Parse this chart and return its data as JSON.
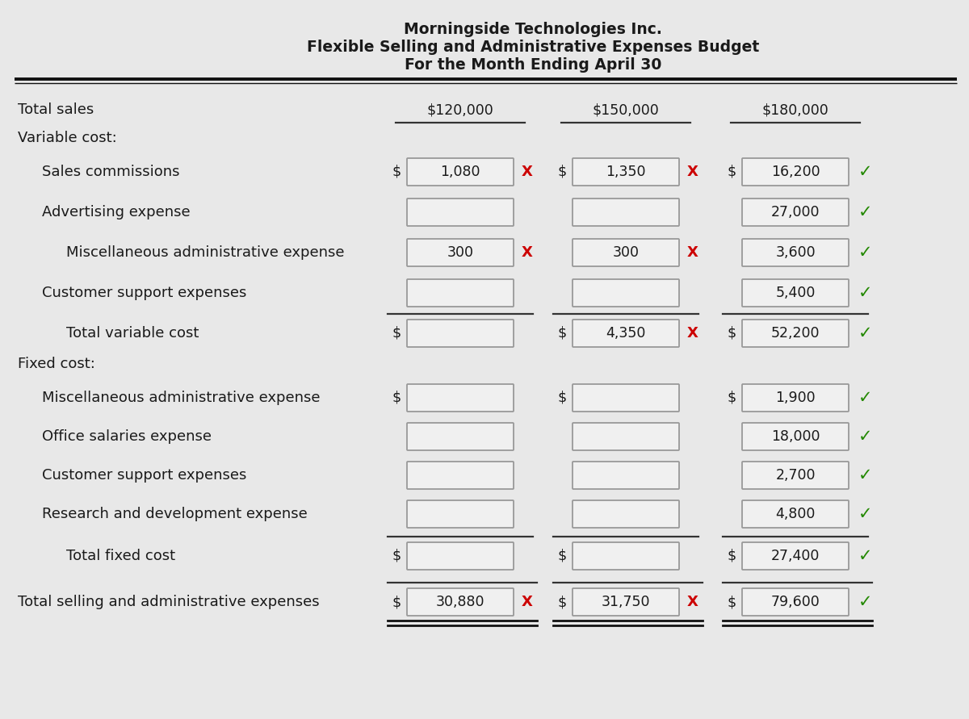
{
  "title_line1": "Morningside Technologies Inc.",
  "title_line2": "Flexible Selling and Administrative Expenses Budget",
  "title_line3": "For the Month Ending April 30",
  "bg_color": "#e8e8e8",
  "box_fill": "#f0f0f0",
  "box_edge": "#999999",
  "text_color": "#1a1a1a",
  "x_color": "#cc0000",
  "check_color": "#228800",
  "rows": [
    {
      "label": "Total sales",
      "indent": 0,
      "col1": {
        "type": "header_value",
        "value": "$120,000"
      },
      "col2": {
        "type": "header_value",
        "value": "$150,000"
      },
      "col3": {
        "type": "header_value",
        "value": "$180,000"
      }
    },
    {
      "label": "Variable cost:",
      "indent": 0,
      "is_section": true
    },
    {
      "label": "Sales commissions",
      "indent": 1,
      "col1": {
        "type": "dollar_box_x",
        "value": "1,080"
      },
      "col2": {
        "type": "dollar_box_x",
        "value": "1,350"
      },
      "col3": {
        "type": "dollar_box_check",
        "value": "16,200"
      }
    },
    {
      "label": "Advertising expense",
      "indent": 1,
      "col1": {
        "type": "box_empty"
      },
      "col2": {
        "type": "box_empty"
      },
      "col3": {
        "type": "box_check",
        "value": "27,000"
      }
    },
    {
      "label": "Miscellaneous administrative expense",
      "indent": 2,
      "col1": {
        "type": "box_x",
        "value": "300"
      },
      "col2": {
        "type": "box_x",
        "value": "300"
      },
      "col3": {
        "type": "box_check",
        "value": "3,600"
      }
    },
    {
      "label": "Customer support expenses",
      "indent": 1,
      "col1": {
        "type": "box_empty"
      },
      "col2": {
        "type": "box_empty"
      },
      "col3": {
        "type": "box_check",
        "value": "5,400"
      }
    },
    {
      "label": "Total variable cost",
      "indent": 2,
      "is_total": true,
      "col1": {
        "type": "dollar_box_empty"
      },
      "col2": {
        "type": "dollar_box_x",
        "value": "4,350"
      },
      "col3": {
        "type": "dollar_box_check",
        "value": "52,200"
      }
    },
    {
      "label": "Fixed cost:",
      "indent": 0,
      "is_section": true
    },
    {
      "label": "Miscellaneous administrative expense",
      "indent": 1,
      "col1": {
        "type": "dollar_box_empty"
      },
      "col2": {
        "type": "dollar_box_empty"
      },
      "col3": {
        "type": "dollar_box_check",
        "value": "1,900"
      }
    },
    {
      "label": "Office salaries expense",
      "indent": 1,
      "col1": {
        "type": "box_empty"
      },
      "col2": {
        "type": "box_empty"
      },
      "col3": {
        "type": "box_check",
        "value": "18,000"
      }
    },
    {
      "label": "Customer support expenses",
      "indent": 1,
      "col1": {
        "type": "box_empty"
      },
      "col2": {
        "type": "box_empty"
      },
      "col3": {
        "type": "box_check",
        "value": "2,700"
      }
    },
    {
      "label": "Research and development expense",
      "indent": 1,
      "col1": {
        "type": "box_empty"
      },
      "col2": {
        "type": "box_empty"
      },
      "col3": {
        "type": "box_check",
        "value": "4,800"
      }
    },
    {
      "label": "Total fixed cost",
      "indent": 2,
      "is_total": true,
      "col1": {
        "type": "dollar_box_empty"
      },
      "col2": {
        "type": "dollar_box_empty"
      },
      "col3": {
        "type": "dollar_box_check",
        "value": "27,400"
      }
    },
    {
      "label": "Total selling and administrative expenses",
      "indent": 0,
      "is_grand_total": true,
      "col1": {
        "type": "dollar_box_x",
        "value": "30,880"
      },
      "col2": {
        "type": "dollar_box_x",
        "value": "31,750"
      },
      "col3": {
        "type": "dollar_box_check",
        "value": "79,600"
      }
    }
  ]
}
